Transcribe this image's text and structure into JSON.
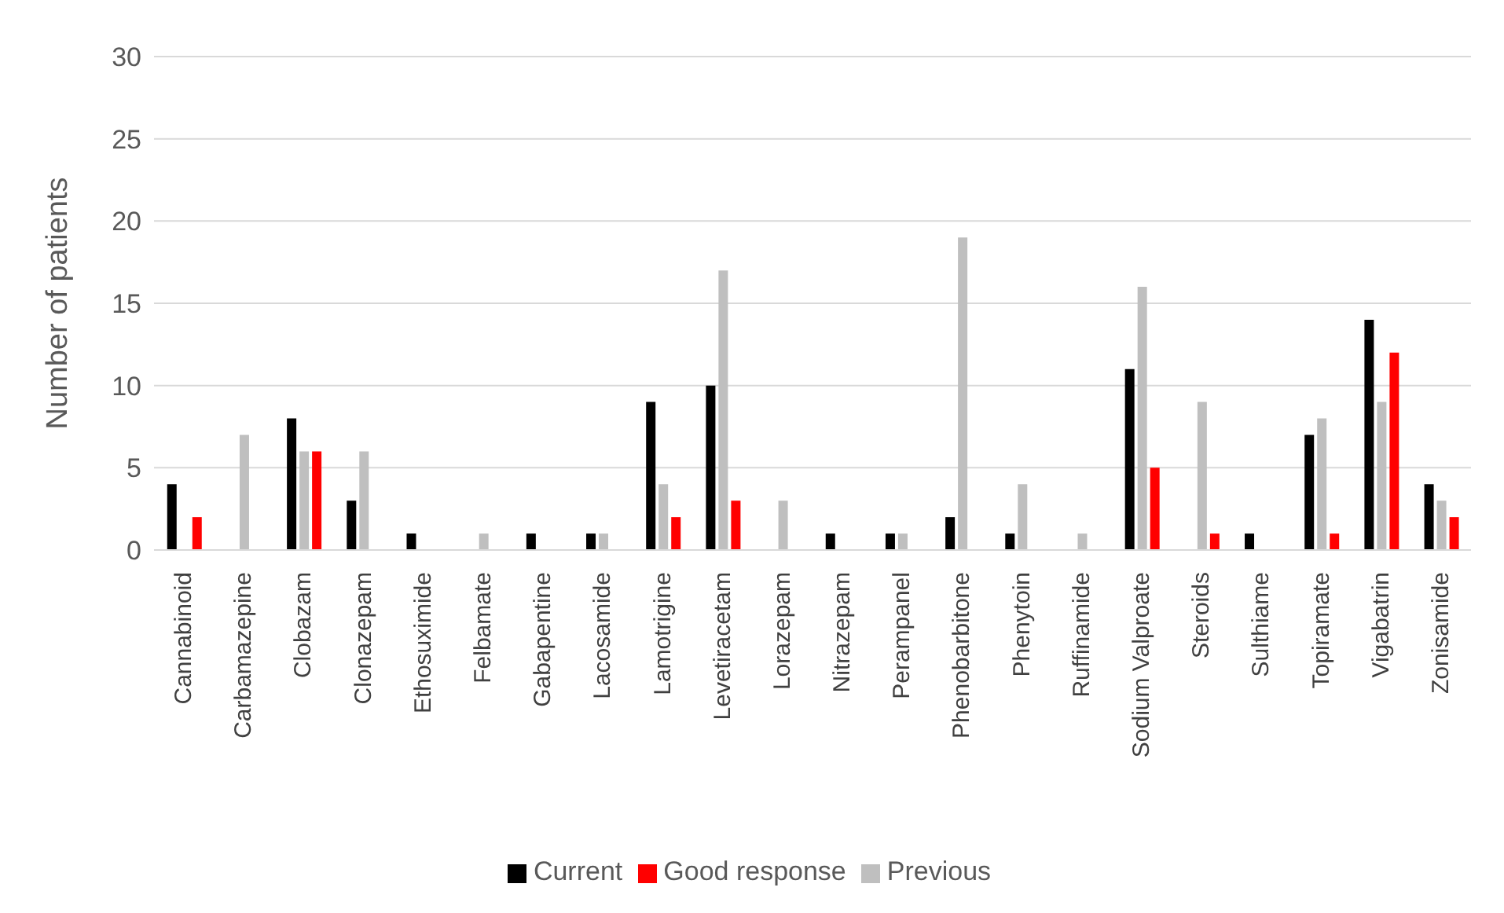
{
  "chart_data": {
    "type": "bar",
    "ylabel": "Number of patients",
    "categories": [
      "Cannabinoid",
      "Carbamazepine",
      "Clobazam",
      "Clonazepam",
      "Ethosuximide",
      "Felbamate",
      "Gabapentine",
      "Lacosamide",
      "Lamotrigine",
      "Levetiracetam",
      "Lorazepam",
      "Nitrazepam",
      "Perampanel",
      "Phenobarbitone",
      "Phenytoin",
      "Ruffinamide",
      "Sodium Valproate",
      "Steroids",
      "Sulthiame",
      "Topiramate",
      "Vigabatrin",
      "Zonisamide"
    ],
    "series": [
      {
        "name": "Current",
        "color": "#000000",
        "values": [
          4,
          0,
          8,
          3,
          1,
          0,
          1,
          1,
          9,
          10,
          0,
          1,
          1,
          2,
          1,
          0,
          11,
          0,
          1,
          7,
          14,
          4
        ]
      },
      {
        "name": "Previous",
        "color": "#bfbfbf",
        "values": [
          0,
          7,
          6,
          6,
          0,
          1,
          0,
          1,
          4,
          17,
          3,
          0,
          1,
          19,
          4,
          1,
          16,
          9,
          0,
          8,
          9,
          3
        ]
      },
      {
        "name": "Good response",
        "color": "#ff0000",
        "values": [
          2,
          0,
          6,
          0,
          0,
          0,
          0,
          0,
          2,
          3,
          0,
          0,
          0,
          0,
          0,
          0,
          5,
          1,
          0,
          1,
          12,
          2
        ]
      }
    ],
    "ylim": [
      0,
      30
    ],
    "yticks": [
      0,
      5,
      10,
      15,
      20,
      25,
      30
    ],
    "grid": "y",
    "legend": "bottom"
  }
}
